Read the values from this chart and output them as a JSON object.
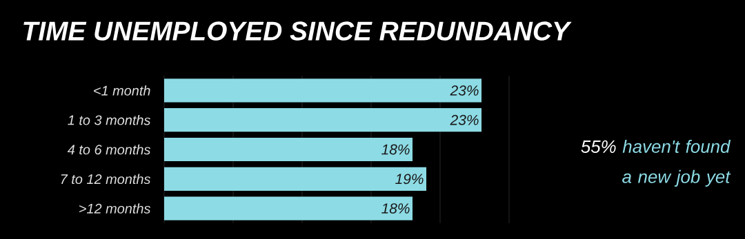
{
  "chart_data": {
    "type": "bar",
    "orientation": "horizontal",
    "title": "TIME UNEMPLOYED SINCE REDUNDANCY",
    "categories": [
      "<1 month",
      "1 to 3 months",
      "4 to 6 months",
      "7 to 12 months",
      ">12 months"
    ],
    "values": [
      23,
      23,
      18,
      19,
      18
    ],
    "value_labels": [
      "23%",
      "23%",
      "18%",
      "19%",
      "18%"
    ],
    "color": "#8ddbe5",
    "xlim": [
      0,
      25
    ],
    "xticks": [
      {
        "value": 0,
        "label": null
      },
      {
        "value": 5,
        "label": null
      },
      {
        "value": 10,
        "label": null
      },
      {
        "value": 15,
        "label": null
      },
      {
        "value": 20,
        "label": null
      },
      {
        "value": 25,
        "label": null
      }
    ],
    "grid": "x",
    "tick_labels": "y",
    "annotations": [
      "55%",
      "haven't found a new job yet"
    ]
  }
}
